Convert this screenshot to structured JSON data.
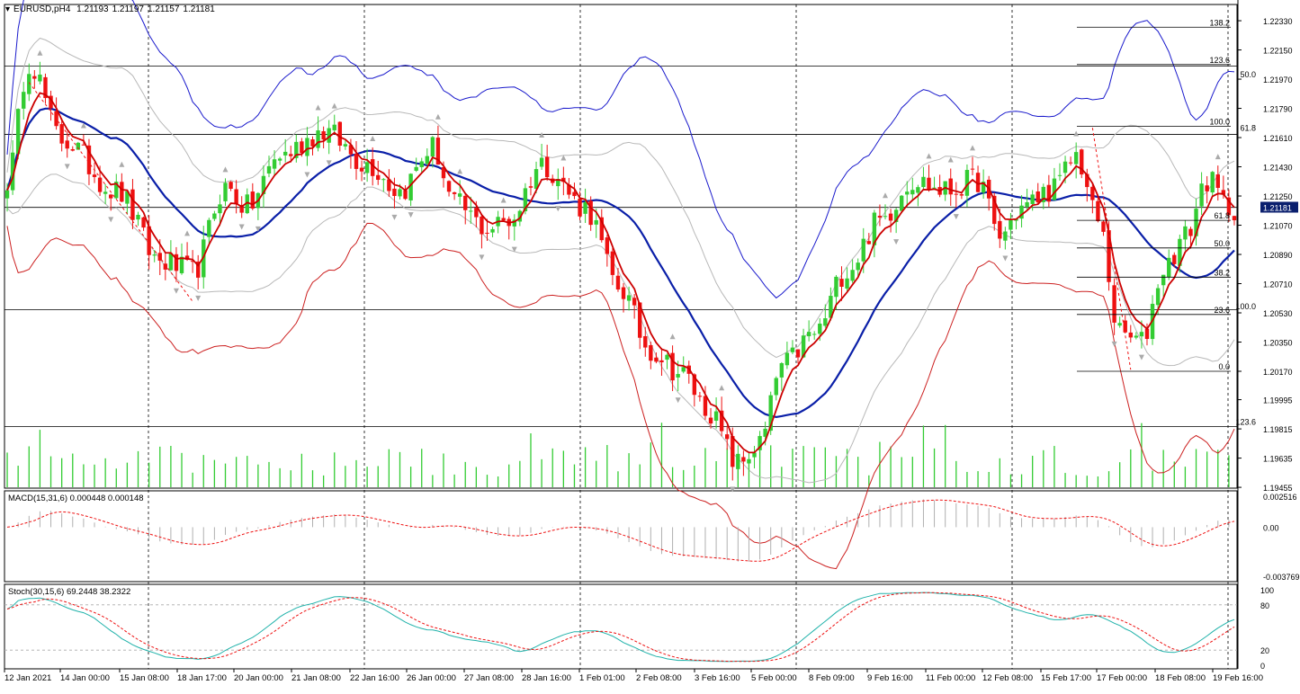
{
  "symbol": {
    "name": "EURUSD,pH4",
    "ohlc": [
      "1.21193",
      "1.21197",
      "1.21157",
      "1.21181"
    ]
  },
  "colors": {
    "bull": "#33cc33",
    "bear": "#ee1111",
    "ma_fast": "#cc0000",
    "ma_slow": "#0a1fa8",
    "bb_outer": "#1a1acc",
    "bb_inner": "#b8b8b8",
    "env_lower": "#cc2020",
    "grid": "#000000",
    "current_price_bg": "#0a1f6e"
  },
  "chart_data": [
    {
      "type": "candlestick",
      "panel": "main",
      "title": "",
      "ylim": [
        1.1945,
        1.2243
      ],
      "y_ticks": [
        "1.22330",
        "1.22150",
        "1.21970",
        "1.21790",
        "1.21610",
        "1.21430",
        "1.21250",
        "1.21070",
        "1.20890",
        "1.20710",
        "1.20530",
        "1.20350",
        "1.20170",
        "1.19995",
        "1.19815",
        "1.19635",
        "1.19455"
      ],
      "current_price": "1.21181",
      "x_labels": [
        "12 Jan 2021",
        "14 Jan 00:00",
        "15 Jan 08:00",
        "18 Jan 17:00",
        "20 Jan 00:00",
        "21 Jan 08:00",
        "22 Jan 16:00",
        "26 Jan 00:00",
        "27 Jan 08:00",
        "28 Jan 16:00",
        "1 Feb 01:00",
        "2 Feb 08:00",
        "3 Feb 16:00",
        "5 Feb 00:00",
        "8 Feb 09:00",
        "9 Feb 16:00",
        "11 Feb 00:00",
        "12 Feb 08:00",
        "15 Feb 17:00",
        "17 Feb 00:00",
        "18 Feb 08:00",
        "19 Feb 16:00"
      ],
      "anchors": [
        [
          0,
          1.2135
        ],
        [
          4,
          1.2208
        ],
        [
          10,
          1.216
        ],
        [
          20,
          1.2128
        ],
        [
          28,
          1.2085
        ],
        [
          34,
          1.2078
        ],
        [
          40,
          1.213
        ],
        [
          44,
          1.2118
        ],
        [
          50,
          1.215
        ],
        [
          58,
          1.2165
        ],
        [
          66,
          1.2145
        ],
        [
          72,
          1.2128
        ],
        [
          78,
          1.2155
        ],
        [
          82,
          1.212
        ],
        [
          88,
          1.2105
        ],
        [
          92,
          1.211
        ],
        [
          98,
          1.2145
        ],
        [
          106,
          1.2118
        ],
        [
          112,
          1.207
        ],
        [
          118,
          1.203
        ],
        [
          124,
          1.2015
        ],
        [
          128,
          1.1995
        ],
        [
          134,
          1.196
        ],
        [
          138,
          1.1972
        ],
        [
          142,
          1.202
        ],
        [
          148,
          1.204
        ],
        [
          154,
          1.208
        ],
        [
          160,
          1.211
        ],
        [
          166,
          1.2135
        ],
        [
          172,
          1.2128
        ],
        [
          178,
          1.2135
        ],
        [
          182,
          1.21
        ],
        [
          186,
          1.2118
        ],
        [
          192,
          1.213
        ],
        [
          196,
          1.215
        ],
        [
          200,
          1.211
        ],
        [
          204,
          1.204
        ],
        [
          208,
          1.2035
        ],
        [
          212,
          1.208
        ],
        [
          216,
          1.21
        ],
        [
          220,
          1.2135
        ],
        [
          224,
          1.2118
        ]
      ],
      "horizontal_levels": [
        1.2205,
        1.2163,
        1.2118,
        1.2055,
        1.1983
      ],
      "fibonacci": {
        "levels": [
          {
            "label": "138.2",
            "price": 1.2229
          },
          {
            "label": "123.6",
            "price": 1.2206
          },
          {
            "label": "100.0",
            "price": 1.2168
          },
          {
            "label": "61.8",
            "price": 1.211
          },
          {
            "label": "50.0",
            "price": 1.2093
          },
          {
            "label": "38.2",
            "price": 1.2075
          },
          {
            "label": "23.6",
            "price": 1.2052
          },
          {
            "label": "0.0",
            "price": 1.2017
          }
        ],
        "left_labels": [
          {
            "label": "50.0",
            "price": 1.2197
          },
          {
            "label": "61.8",
            "price": 1.2164
          },
          {
            "label": "100.0",
            "price": 1.2054
          },
          {
            "label": "123.6",
            "price": 1.1983
          }
        ]
      }
    },
    {
      "type": "macd",
      "panel": "macd",
      "label": "MACD(15,31,6) 0.000448 0.000148",
      "ylim": [
        -0.003769,
        0.002516
      ],
      "y_ticks": [
        "0.002516",
        "0.00",
        "-0.003769"
      ]
    },
    {
      "type": "stochastic",
      "panel": "stoch",
      "label": "Stoch(30,15,6) 69.2448 38.2322",
      "ylim": [
        0,
        100
      ],
      "y_ticks": [
        "100",
        "80",
        "20",
        "0"
      ]
    }
  ]
}
